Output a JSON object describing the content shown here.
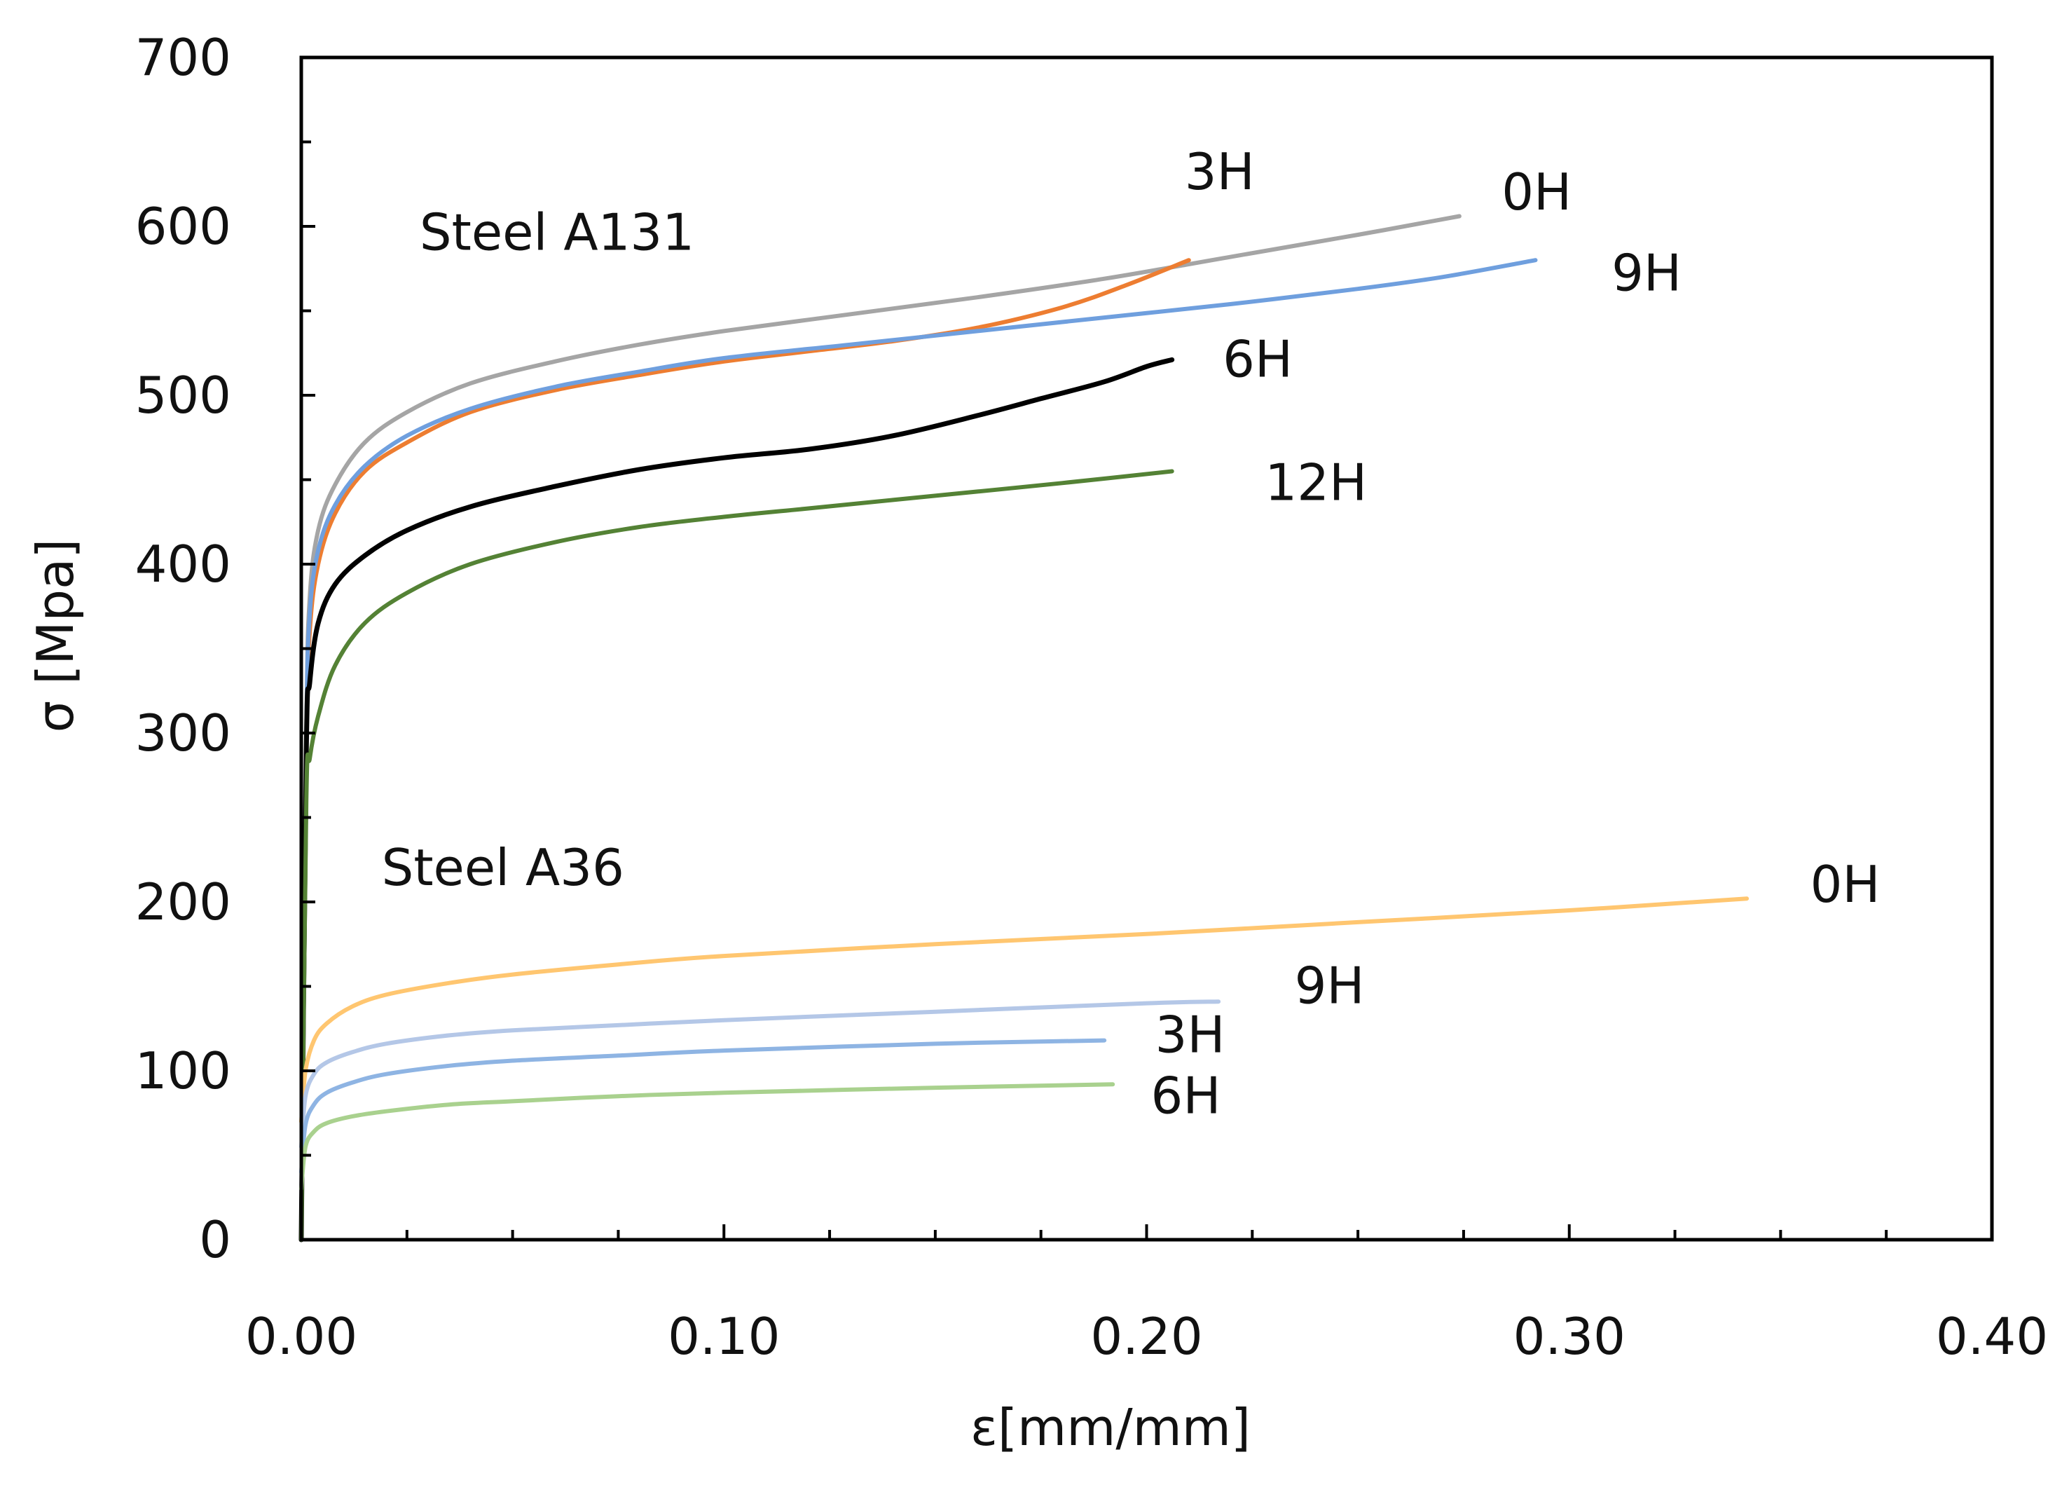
{
  "chart_data": {
    "type": "line",
    "title": "",
    "xlabel": "ε[mm/mm]",
    "ylabel": "σ [Mpa]",
    "xlim": [
      0.0,
      0.4
    ],
    "ylim": [
      0,
      700
    ],
    "xticks": [
      {
        "value": 0.0,
        "label": "0.00"
      },
      {
        "value": 0.1,
        "label": "0.10"
      },
      {
        "value": 0.2,
        "label": "0.20"
      },
      {
        "value": 0.3,
        "label": "0.30"
      },
      {
        "value": 0.4,
        "label": "0.40"
      }
    ],
    "yticks": [
      {
        "value": 0,
        "label": "0"
      },
      {
        "value": 100,
        "label": "100"
      },
      {
        "value": 200,
        "label": "200"
      },
      {
        "value": 300,
        "label": "300"
      },
      {
        "value": 400,
        "label": "400"
      },
      {
        "value": 500,
        "label": "500"
      },
      {
        "value": 600,
        "label": "600"
      },
      {
        "value": 700,
        "label": "700"
      }
    ],
    "grid": false,
    "annotations": [
      {
        "text": "Steel A131",
        "x": 0.028,
        "y": 586
      },
      {
        "text": "Steel A36",
        "x": 0.019,
        "y": 210
      }
    ],
    "series": [
      {
        "name": "A131 0H",
        "group": "Steel A131",
        "label": "0H",
        "label_pos": {
          "x": 0.284,
          "y": 610
        },
        "color": "#a5a5a5",
        "width": 6,
        "x": [
          0,
          0.0012,
          0.002,
          0.004,
          0.008,
          0.015,
          0.025,
          0.04,
          0.06,
          0.08,
          0.1,
          0.13,
          0.16,
          0.19,
          0.22,
          0.25,
          0.274
        ],
        "y": [
          0,
          300,
          380,
          420,
          447,
          472,
          490,
          507,
          520,
          530,
          538,
          548,
          558,
          569,
          582,
          595,
          606
        ]
      },
      {
        "name": "A131 3H",
        "group": "Steel A131",
        "label": "3H",
        "label_pos": {
          "x": 0.209,
          "y": 622
        },
        "color": "#ed7d31",
        "width": 6,
        "x": [
          0,
          0.0012,
          0.002,
          0.004,
          0.008,
          0.015,
          0.025,
          0.04,
          0.06,
          0.08,
          0.1,
          0.12,
          0.14,
          0.16,
          0.18,
          0.195,
          0.21
        ],
        "y": [
          0,
          290,
          360,
          400,
          430,
          455,
          472,
          490,
          503,
          512,
          520,
          526,
          532,
          540,
          552,
          565,
          580
        ]
      },
      {
        "name": "A131 9H",
        "group": "Steel A131",
        "label": "9H",
        "label_pos": {
          "x": 0.31,
          "y": 562
        },
        "color": "#6f9fde",
        "width": 6,
        "x": [
          0,
          0.0012,
          0.002,
          0.004,
          0.008,
          0.015,
          0.025,
          0.04,
          0.06,
          0.08,
          0.1,
          0.13,
          0.16,
          0.19,
          0.22,
          0.25,
          0.27,
          0.292
        ],
        "y": [
          0,
          295,
          370,
          408,
          435,
          458,
          476,
          492,
          505,
          514,
          522,
          530,
          538,
          546,
          554,
          563,
          570,
          580
        ]
      },
      {
        "name": "A131 6H",
        "group": "Steel A131",
        "label": "6H",
        "label_pos": {
          "x": 0.218,
          "y": 511
        },
        "color": "#000000",
        "width": 7,
        "x": [
          0,
          0.0012,
          0.002,
          0.004,
          0.008,
          0.015,
          0.025,
          0.04,
          0.06,
          0.08,
          0.1,
          0.12,
          0.14,
          0.16,
          0.175,
          0.19,
          0.2,
          0.206
        ],
        "y": [
          0,
          290,
          330,
          365,
          388,
          405,
          420,
          434,
          446,
          456,
          463,
          468,
          476,
          488,
          498,
          508,
          517,
          521
        ]
      },
      {
        "name": "A131 12H",
        "group": "Steel A131",
        "label": "12H",
        "label_pos": {
          "x": 0.228,
          "y": 438
        },
        "color": "#548235",
        "width": 6,
        "x": [
          0,
          0.0012,
          0.002,
          0.004,
          0.008,
          0.015,
          0.025,
          0.04,
          0.06,
          0.08,
          0.1,
          0.12,
          0.14,
          0.16,
          0.18,
          0.206
        ],
        "y": [
          0,
          260,
          285,
          310,
          340,
          365,
          383,
          400,
          413,
          422,
          428,
          433,
          438,
          443,
          448,
          455
        ]
      },
      {
        "name": "A36 0H",
        "group": "Steel A36",
        "label": "0H",
        "label_pos": {
          "x": 0.357,
          "y": 200
        },
        "color": "#ffc670",
        "width": 6,
        "x": [
          0,
          0.001,
          0.003,
          0.006,
          0.012,
          0.02,
          0.035,
          0.05,
          0.075,
          0.1,
          0.15,
          0.2,
          0.25,
          0.3,
          0.342
        ],
        "y": [
          70,
          100,
          118,
          128,
          138,
          145,
          152,
          157,
          163,
          168,
          175,
          181,
          188,
          195,
          202
        ]
      },
      {
        "name": "A36 9H",
        "group": "Steel A36",
        "label": "9H",
        "label_pos": {
          "x": 0.235,
          "y": 140
        },
        "color": "#b4c7e7",
        "width": 6,
        "x": [
          0,
          0.001,
          0.003,
          0.006,
          0.012,
          0.02,
          0.035,
          0.05,
          0.075,
          0.1,
          0.15,
          0.2,
          0.217
        ],
        "y": [
          55,
          85,
          98,
          105,
          111,
          116,
          121,
          124,
          127,
          130,
          135,
          140,
          141
        ]
      },
      {
        "name": "A36 3H",
        "group": "Steel A36",
        "label": "3H",
        "label_pos": {
          "x": 0.202,
          "y": 111
        },
        "color": "#8eb4e3",
        "width": 6,
        "x": [
          0,
          0.001,
          0.003,
          0.006,
          0.012,
          0.02,
          0.035,
          0.05,
          0.075,
          0.1,
          0.15,
          0.19
        ],
        "y": [
          40,
          68,
          80,
          87,
          93,
          98,
          103,
          106,
          109,
          112,
          116,
          118
        ]
      },
      {
        "name": "A36 6H",
        "group": "Steel A36",
        "label": "6H",
        "label_pos": {
          "x": 0.201,
          "y": 75
        },
        "color": "#a9d18e",
        "width": 6,
        "x": [
          0,
          0.001,
          0.003,
          0.006,
          0.012,
          0.02,
          0.035,
          0.05,
          0.075,
          0.1,
          0.15,
          0.192
        ],
        "y": [
          30,
          55,
          64,
          69,
          73,
          76,
          80,
          82,
          85,
          87,
          90,
          92
        ]
      }
    ]
  }
}
